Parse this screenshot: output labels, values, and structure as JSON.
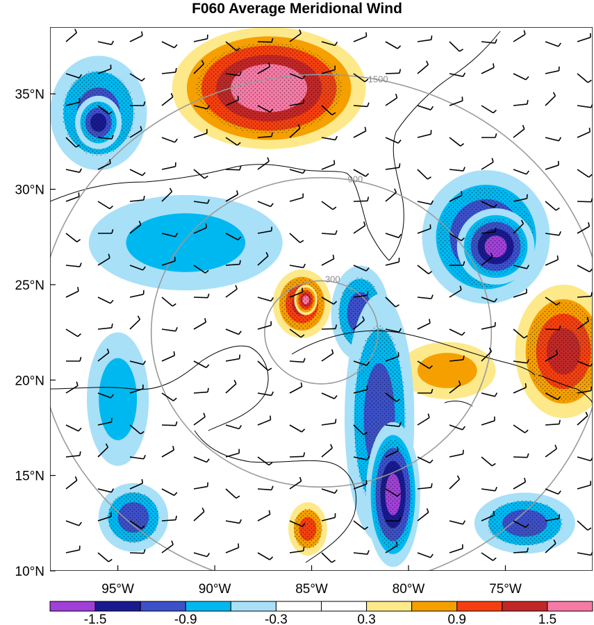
{
  "title": "F060 Average Meridional Wind",
  "map": {
    "lon_range": [
      -98.5,
      -70.5
    ],
    "lat_range": [
      10,
      38.5
    ],
    "lat_ticks": [
      {
        "value": 35,
        "label": "35°N"
      },
      {
        "value": 30,
        "label": "30°N"
      },
      {
        "value": 25,
        "label": "25°N"
      },
      {
        "value": 20,
        "label": "20°N"
      },
      {
        "value": 15,
        "label": "15°N"
      },
      {
        "value": 10,
        "label": "10°N"
      }
    ],
    "lon_ticks": [
      {
        "value": -95,
        "label": "95°W"
      },
      {
        "value": -90,
        "label": "90°W"
      },
      {
        "value": -85,
        "label": "85°W"
      },
      {
        "value": -80,
        "label": "80°W"
      },
      {
        "value": -75,
        "label": "75°W"
      }
    ],
    "range_rings": {
      "center": {
        "lon": -84.5,
        "lat": 22.5
      },
      "rings": [
        {
          "radius_km": 300,
          "label": "300"
        },
        {
          "radius_km": 900,
          "label": "900"
        },
        {
          "radius_km": 1500,
          "label": "1500"
        }
      ],
      "color": "#9a9a9a"
    },
    "wind_field_regions": [
      {
        "lon": -87.2,
        "lat": 35.3,
        "rx": 5.0,
        "ry": 3.2,
        "value": 1.8
      },
      {
        "lon": -87.0,
        "lat": 35.0,
        "rx": 3.5,
        "ry": 2.2,
        "value": 1.6
      },
      {
        "lon": -96.0,
        "lat": 34.0,
        "rx": 2.5,
        "ry": 3.0,
        "value": -1.0
      },
      {
        "lon": -96.0,
        "lat": 33.5,
        "rx": 1.2,
        "ry": 1.4,
        "value": -1.3
      },
      {
        "lon": -76.0,
        "lat": 27.5,
        "rx": 3.3,
        "ry": 3.5,
        "value": -1.1
      },
      {
        "lon": -75.5,
        "lat": 27.0,
        "rx": 2.0,
        "ry": 2.0,
        "value": -1.4
      },
      {
        "lon": -85.5,
        "lat": 24.0,
        "rx": 1.5,
        "ry": 1.8,
        "value": 1.2
      },
      {
        "lon": -85.3,
        "lat": 24.2,
        "rx": 0.6,
        "ry": 0.8,
        "value": 1.6
      },
      {
        "lon": -82.5,
        "lat": 23.5,
        "rx": 1.5,
        "ry": 2.5,
        "value": -1.0
      },
      {
        "lon": -81.5,
        "lat": 18.0,
        "rx": 1.8,
        "ry": 6.5,
        "value": -1.0
      },
      {
        "lon": -80.8,
        "lat": 14.0,
        "rx": 1.4,
        "ry": 3.8,
        "value": -1.5
      },
      {
        "lon": -72.0,
        "lat": 21.5,
        "rx": 2.5,
        "ry": 3.5,
        "value": 1.1
      },
      {
        "lon": -94.2,
        "lat": 12.8,
        "rx": 1.8,
        "ry": 1.8,
        "value": -1.0
      },
      {
        "lon": -74.0,
        "lat": 12.5,
        "rx": 2.6,
        "ry": 1.6,
        "value": -0.9
      },
      {
        "lon": -85.2,
        "lat": 12.2,
        "rx": 1.0,
        "ry": 1.4,
        "value": 1.0
      },
      {
        "lon": -78.0,
        "lat": 20.5,
        "rx": 2.5,
        "ry": 1.5,
        "value": 0.7
      },
      {
        "lon": -91.5,
        "lat": 27.2,
        "rx": 5.0,
        "ry": 2.5,
        "value": -0.5
      },
      {
        "lon": -95.0,
        "lat": 19.0,
        "rx": 1.6,
        "ry": 3.5,
        "value": -0.7
      }
    ]
  },
  "colorbar": {
    "colors": [
      "#a040d8",
      "#1a1a90",
      "#3c50c8",
      "#00b8f0",
      "#a8e0f8",
      "#ffffff",
      "#ffffff",
      "#fde98a",
      "#f5a000",
      "#f44010",
      "#c02828",
      "#f57aa6"
    ],
    "labels": [
      "-1.5",
      "-0.9",
      "-0.3",
      "0.3",
      "0.9",
      "1.5"
    ],
    "label_positions": [
      1,
      3,
      5,
      7,
      9,
      11
    ]
  }
}
